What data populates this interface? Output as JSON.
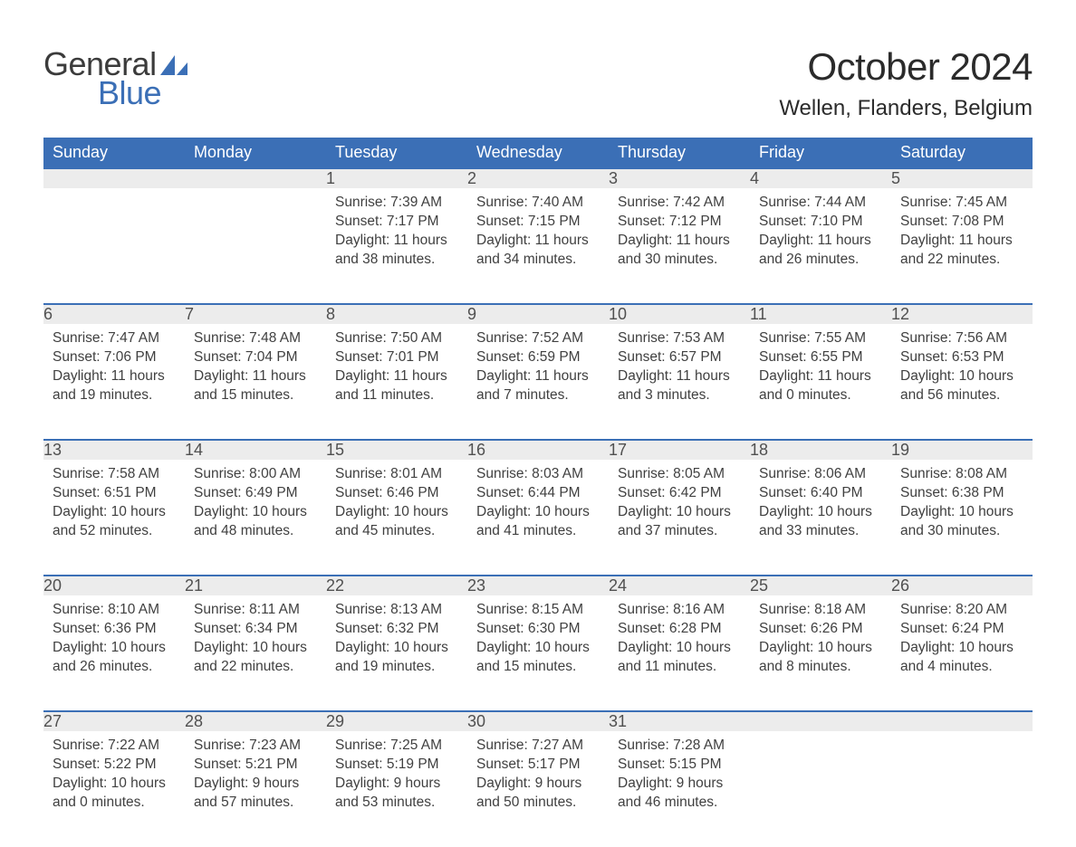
{
  "brand": {
    "word1": "General",
    "word2": "Blue",
    "text_color": "#3b3b3b",
    "accent_color": "#3b6fb6"
  },
  "title": "October 2024",
  "location": "Wellen, Flanders, Belgium",
  "colors": {
    "header_bg": "#3b6fb6",
    "header_text": "#ffffff",
    "daynum_bg": "#ececec",
    "row_border": "#3b6fb6",
    "body_text": "#404040",
    "page_bg": "#ffffff"
  },
  "daysOfWeek": [
    "Sunday",
    "Monday",
    "Tuesday",
    "Wednesday",
    "Thursday",
    "Friday",
    "Saturday"
  ],
  "weeks": [
    [
      null,
      null,
      {
        "n": "1",
        "sunrise": "7:39 AM",
        "sunset": "7:17 PM",
        "daylight": "11 hours and 38 minutes."
      },
      {
        "n": "2",
        "sunrise": "7:40 AM",
        "sunset": "7:15 PM",
        "daylight": "11 hours and 34 minutes."
      },
      {
        "n": "3",
        "sunrise": "7:42 AM",
        "sunset": "7:12 PM",
        "daylight": "11 hours and 30 minutes."
      },
      {
        "n": "4",
        "sunrise": "7:44 AM",
        "sunset": "7:10 PM",
        "daylight": "11 hours and 26 minutes."
      },
      {
        "n": "5",
        "sunrise": "7:45 AM",
        "sunset": "7:08 PM",
        "daylight": "11 hours and 22 minutes."
      }
    ],
    [
      {
        "n": "6",
        "sunrise": "7:47 AM",
        "sunset": "7:06 PM",
        "daylight": "11 hours and 19 minutes."
      },
      {
        "n": "7",
        "sunrise": "7:48 AM",
        "sunset": "7:04 PM",
        "daylight": "11 hours and 15 minutes."
      },
      {
        "n": "8",
        "sunrise": "7:50 AM",
        "sunset": "7:01 PM",
        "daylight": "11 hours and 11 minutes."
      },
      {
        "n": "9",
        "sunrise": "7:52 AM",
        "sunset": "6:59 PM",
        "daylight": "11 hours and 7 minutes."
      },
      {
        "n": "10",
        "sunrise": "7:53 AM",
        "sunset": "6:57 PM",
        "daylight": "11 hours and 3 minutes."
      },
      {
        "n": "11",
        "sunrise": "7:55 AM",
        "sunset": "6:55 PM",
        "daylight": "11 hours and 0 minutes."
      },
      {
        "n": "12",
        "sunrise": "7:56 AM",
        "sunset": "6:53 PM",
        "daylight": "10 hours and 56 minutes."
      }
    ],
    [
      {
        "n": "13",
        "sunrise": "7:58 AM",
        "sunset": "6:51 PM",
        "daylight": "10 hours and 52 minutes."
      },
      {
        "n": "14",
        "sunrise": "8:00 AM",
        "sunset": "6:49 PM",
        "daylight": "10 hours and 48 minutes."
      },
      {
        "n": "15",
        "sunrise": "8:01 AM",
        "sunset": "6:46 PM",
        "daylight": "10 hours and 45 minutes."
      },
      {
        "n": "16",
        "sunrise": "8:03 AM",
        "sunset": "6:44 PM",
        "daylight": "10 hours and 41 minutes."
      },
      {
        "n": "17",
        "sunrise": "8:05 AM",
        "sunset": "6:42 PM",
        "daylight": "10 hours and 37 minutes."
      },
      {
        "n": "18",
        "sunrise": "8:06 AM",
        "sunset": "6:40 PM",
        "daylight": "10 hours and 33 minutes."
      },
      {
        "n": "19",
        "sunrise": "8:08 AM",
        "sunset": "6:38 PM",
        "daylight": "10 hours and 30 minutes."
      }
    ],
    [
      {
        "n": "20",
        "sunrise": "8:10 AM",
        "sunset": "6:36 PM",
        "daylight": "10 hours and 26 minutes."
      },
      {
        "n": "21",
        "sunrise": "8:11 AM",
        "sunset": "6:34 PM",
        "daylight": "10 hours and 22 minutes."
      },
      {
        "n": "22",
        "sunrise": "8:13 AM",
        "sunset": "6:32 PM",
        "daylight": "10 hours and 19 minutes."
      },
      {
        "n": "23",
        "sunrise": "8:15 AM",
        "sunset": "6:30 PM",
        "daylight": "10 hours and 15 minutes."
      },
      {
        "n": "24",
        "sunrise": "8:16 AM",
        "sunset": "6:28 PM",
        "daylight": "10 hours and 11 minutes."
      },
      {
        "n": "25",
        "sunrise": "8:18 AM",
        "sunset": "6:26 PM",
        "daylight": "10 hours and 8 minutes."
      },
      {
        "n": "26",
        "sunrise": "8:20 AM",
        "sunset": "6:24 PM",
        "daylight": "10 hours and 4 minutes."
      }
    ],
    [
      {
        "n": "27",
        "sunrise": "7:22 AM",
        "sunset": "5:22 PM",
        "daylight": "10 hours and 0 minutes."
      },
      {
        "n": "28",
        "sunrise": "7:23 AM",
        "sunset": "5:21 PM",
        "daylight": "9 hours and 57 minutes."
      },
      {
        "n": "29",
        "sunrise": "7:25 AM",
        "sunset": "5:19 PM",
        "daylight": "9 hours and 53 minutes."
      },
      {
        "n": "30",
        "sunrise": "7:27 AM",
        "sunset": "5:17 PM",
        "daylight": "9 hours and 50 minutes."
      },
      {
        "n": "31",
        "sunrise": "7:28 AM",
        "sunset": "5:15 PM",
        "daylight": "9 hours and 46 minutes."
      },
      null,
      null
    ]
  ],
  "labels": {
    "sunrise": "Sunrise: ",
    "sunset": "Sunset: ",
    "daylight": "Daylight: "
  }
}
